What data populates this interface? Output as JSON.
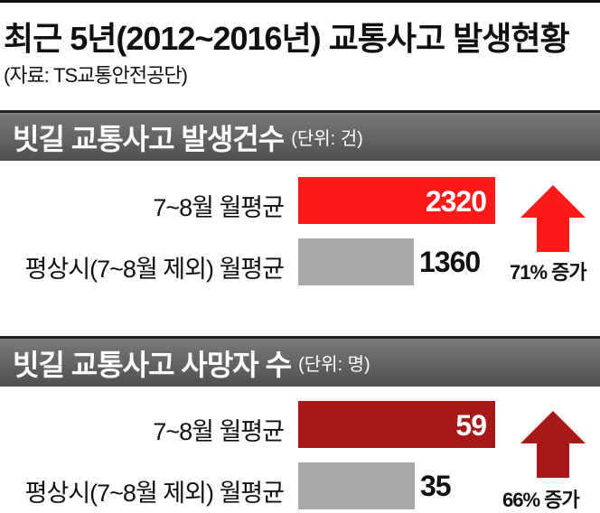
{
  "header": {
    "title": "최근 5년(2012~2016년) 교통사고 발생현황",
    "source": "(자료: TS교통안전공단)"
  },
  "colors": {
    "accidents_peak": "#ff1a1a",
    "deaths_peak": "#a81818",
    "normal": "#a9a9a9",
    "section_bar": "#606060"
  },
  "chart_data": [
    {
      "type": "bar",
      "title": "빗길 교통사고 발생건수",
      "unit": "(단위: 건)",
      "categories": [
        "7~8월 월평균",
        "평상시(7~8월 제외) 월평균"
      ],
      "values": [
        2320,
        1360
      ],
      "change": {
        "percent": "71%",
        "label": "증가",
        "icon": "arrow-up-icon"
      }
    },
    {
      "type": "bar",
      "title": "빗길 교통사고 사망자 수",
      "unit": "(단위: 명)",
      "categories": [
        "7~8월 월평균",
        "평상시(7~8월 제외) 월평균"
      ],
      "values": [
        59,
        35
      ],
      "change": {
        "percent": "66%",
        "label": "증가",
        "icon": "arrow-up-icon"
      }
    }
  ]
}
